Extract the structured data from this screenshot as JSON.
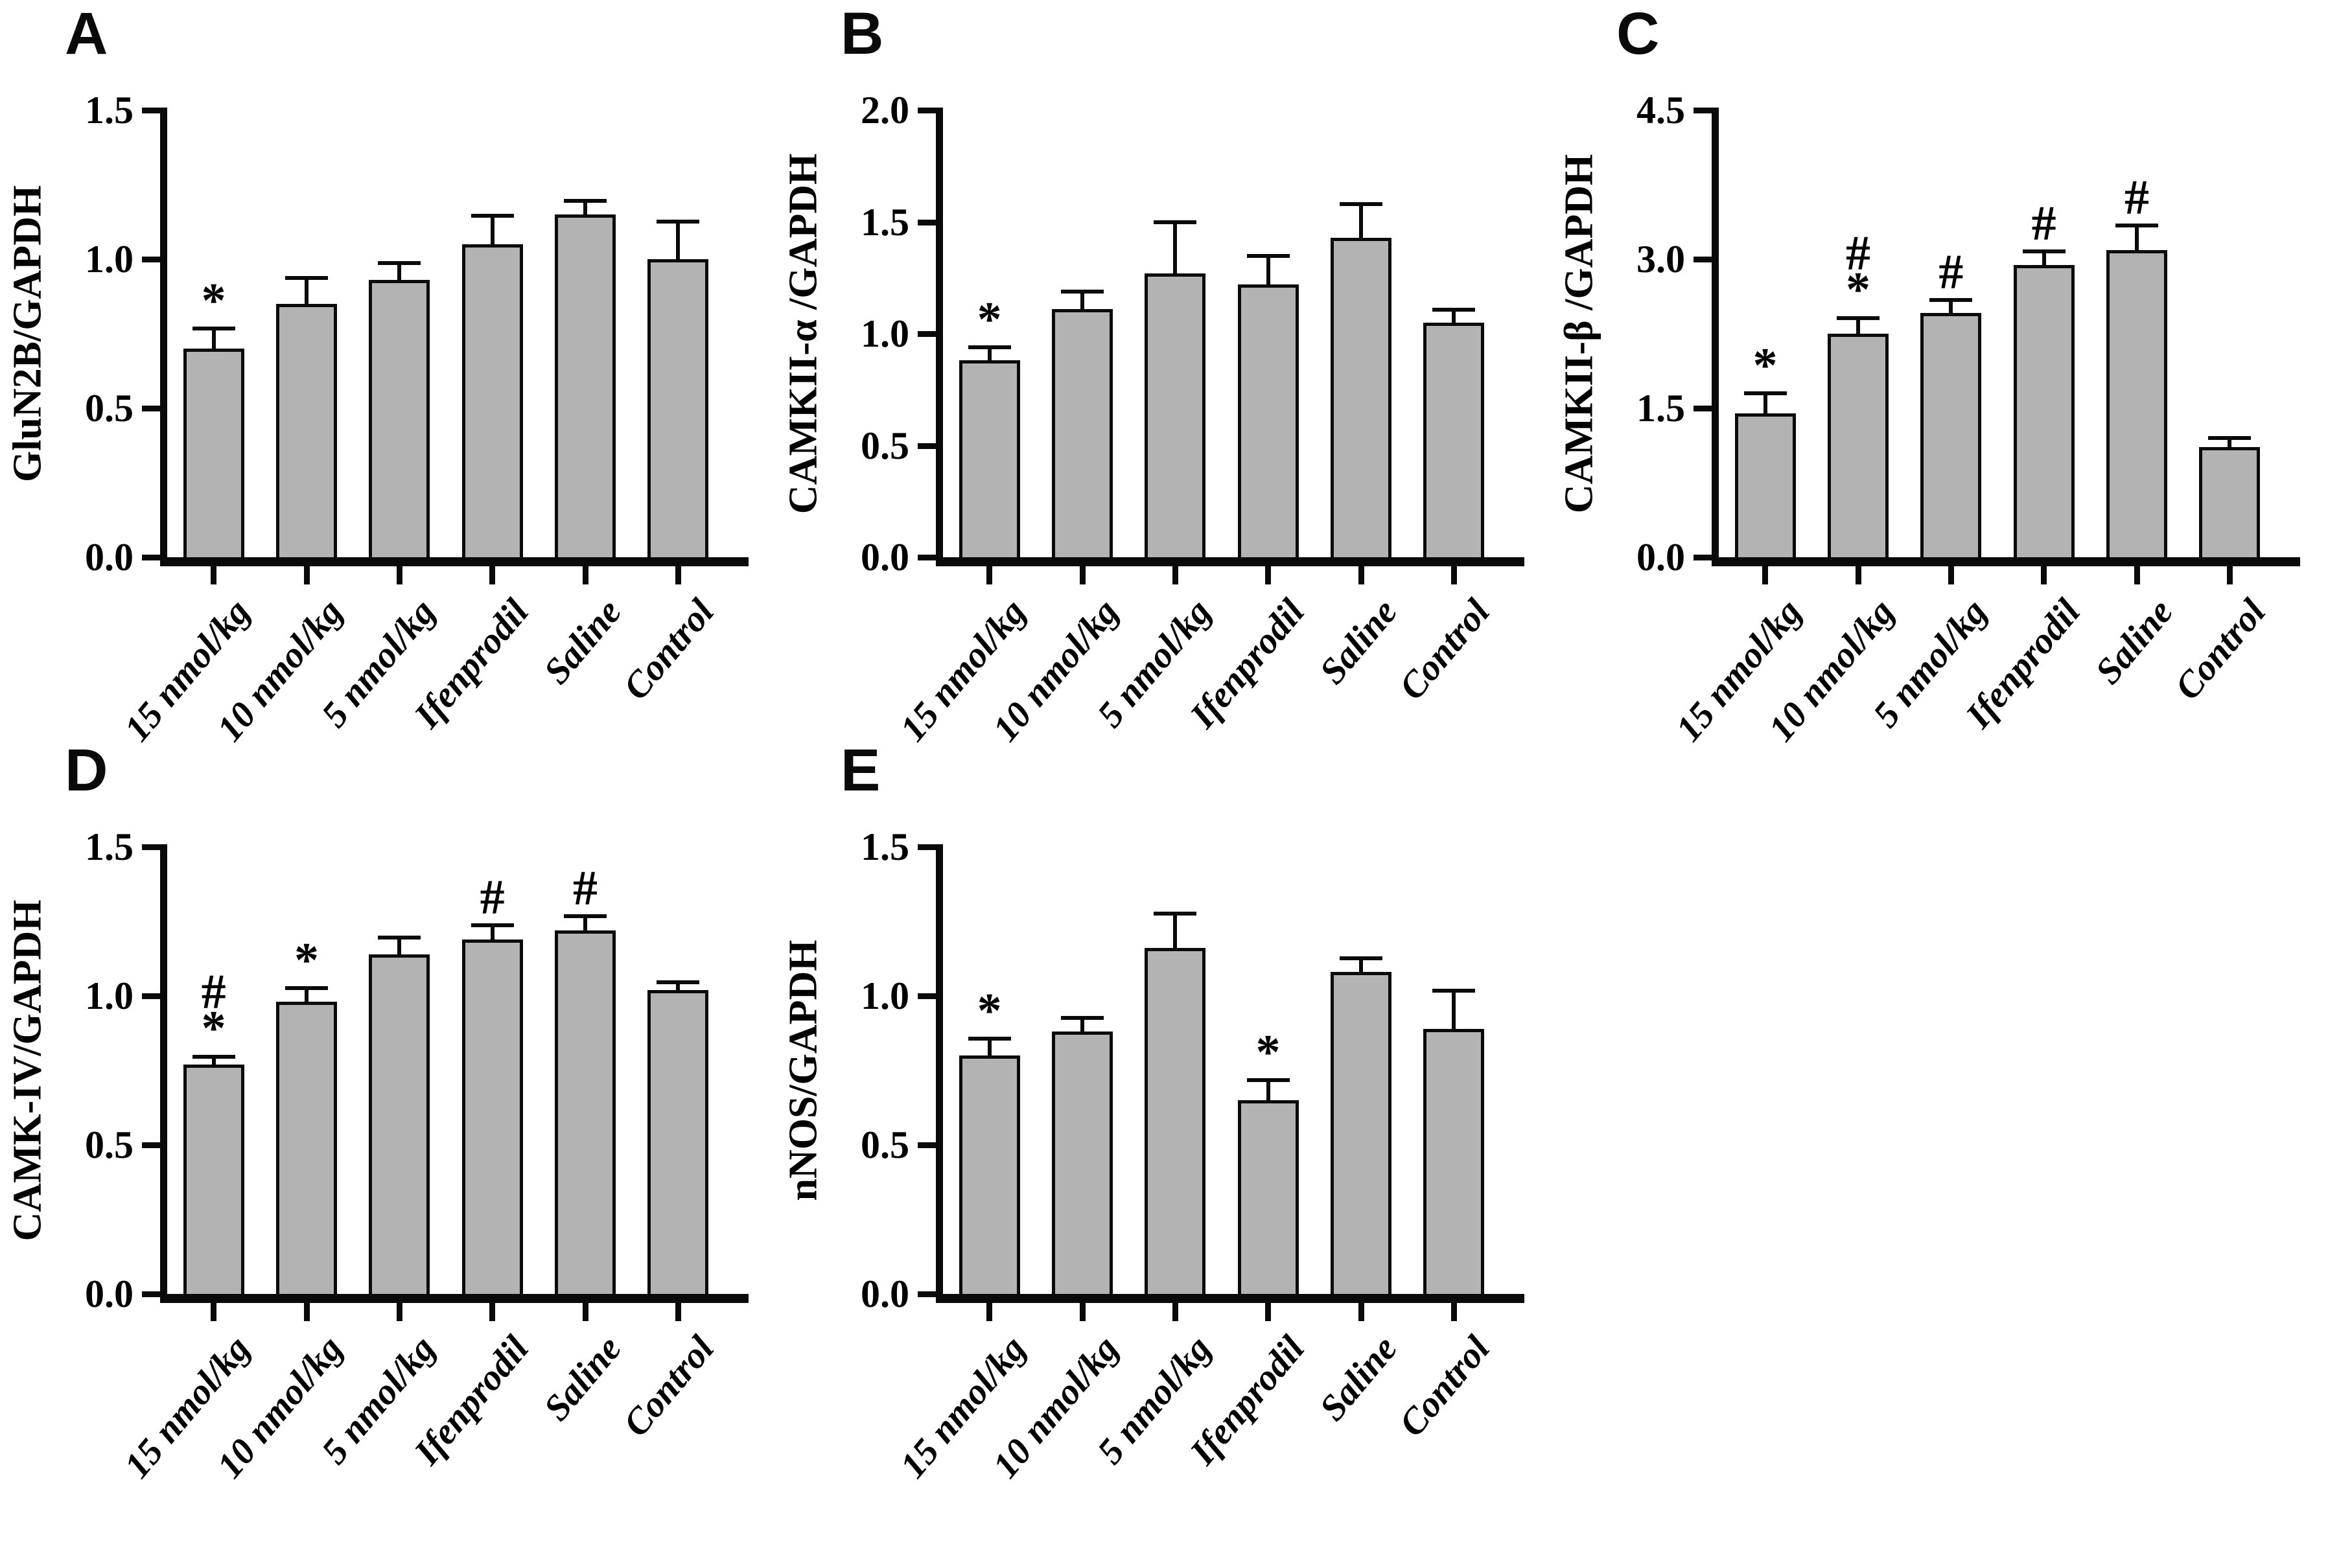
{
  "figure_title": "",
  "bar_fill_color": "#b3b3b3",
  "axis_color": "#0a0a0a",
  "categories": [
    "15 nmol/kg",
    "10 nmol/kg",
    "5 nmol/kg",
    "Ifenprodil",
    "Saline",
    "Control"
  ],
  "chart_data": [
    {
      "type": "bar",
      "panel_label": "A",
      "title": "",
      "xlabel": "",
      "ylabel": "GluN2B/GAPDH",
      "ylim": [
        0.0,
        1.5
      ],
      "yticks": [
        0.0,
        0.5,
        1.0,
        1.5
      ],
      "categories": [
        "15 nmol/kg",
        "10 nmol/kg",
        "5 nmol/kg",
        "Ifenprodil",
        "Saline",
        "Control"
      ],
      "values": [
        0.7,
        0.85,
        0.93,
        1.05,
        1.15,
        1.0
      ],
      "errors": [
        0.06,
        0.08,
        0.05,
        0.09,
        0.04,
        0.12
      ],
      "significance": [
        "*",
        "",
        "",
        "",
        "",
        ""
      ],
      "legend": null,
      "grid": false
    },
    {
      "type": "bar",
      "panel_label": "B",
      "title": "",
      "xlabel": "",
      "ylabel": "CAMKII-α /GAPDH",
      "ylim": [
        0.0,
        2.0
      ],
      "yticks": [
        0.0,
        0.5,
        1.0,
        1.5,
        2.0
      ],
      "categories": [
        "15 nmol/kg",
        "10 nmol/kg",
        "5 nmol/kg",
        "Ifenprodil",
        "Saline",
        "Control"
      ],
      "values": [
        0.88,
        1.11,
        1.27,
        1.22,
        1.43,
        1.05
      ],
      "errors": [
        0.05,
        0.07,
        0.22,
        0.12,
        0.14,
        0.05
      ],
      "significance": [
        "*",
        "",
        "",
        "",
        "",
        ""
      ],
      "legend": null,
      "grid": false
    },
    {
      "type": "bar",
      "panel_label": "C",
      "title": "",
      "xlabel": "",
      "ylabel": "CAMKII-β /GAPDH",
      "ylim": [
        0.0,
        4.5
      ],
      "yticks": [
        0.0,
        1.5,
        3.0,
        4.5
      ],
      "categories": [
        "15 nmol/kg",
        "10 nmol/kg",
        "5 nmol/kg",
        "Ifenprodil",
        "Saline",
        "Control"
      ],
      "values": [
        1.45,
        2.25,
        2.46,
        2.94,
        3.09,
        1.11
      ],
      "errors": [
        0.18,
        0.14,
        0.11,
        0.12,
        0.23,
        0.07
      ],
      "significance": [
        "*",
        "#*",
        "#",
        "#",
        "#",
        ""
      ],
      "legend": null,
      "grid": false
    },
    {
      "type": "bar",
      "panel_label": "D",
      "title": "",
      "xlabel": "",
      "ylabel": "CAMK-IV/GAPDH",
      "ylim": [
        0.0,
        1.5
      ],
      "yticks": [
        0.0,
        0.5,
        1.0,
        1.5
      ],
      "categories": [
        "15 nmol/kg",
        "10 nmol/kg",
        "5 nmol/kg",
        "Ifenprodil",
        "Saline",
        "Control"
      ],
      "values": [
        0.77,
        0.98,
        1.14,
        1.19,
        1.22,
        1.02
      ],
      "errors": [
        0.02,
        0.04,
        0.05,
        0.04,
        0.04,
        0.02
      ],
      "significance": [
        "#*",
        "*",
        "",
        "#",
        "#",
        ""
      ],
      "legend": null,
      "grid": false
    },
    {
      "type": "bar",
      "panel_label": "E",
      "title": "",
      "xlabel": "",
      "ylabel": "nNOS/GAPDH",
      "ylim": [
        0.0,
        1.5
      ],
      "yticks": [
        0.0,
        0.5,
        1.0,
        1.5
      ],
      "categories": [
        "15 nmol/kg",
        "10 nmol/kg",
        "5 nmol/kg",
        "Ifenprodil",
        "Saline",
        "Control"
      ],
      "values": [
        0.8,
        0.88,
        1.16,
        0.65,
        1.08,
        0.89
      ],
      "errors": [
        0.05,
        0.04,
        0.11,
        0.06,
        0.04,
        0.12
      ],
      "significance": [
        "*",
        "",
        "",
        "*",
        "",
        ""
      ],
      "legend": null,
      "grid": false
    }
  ]
}
